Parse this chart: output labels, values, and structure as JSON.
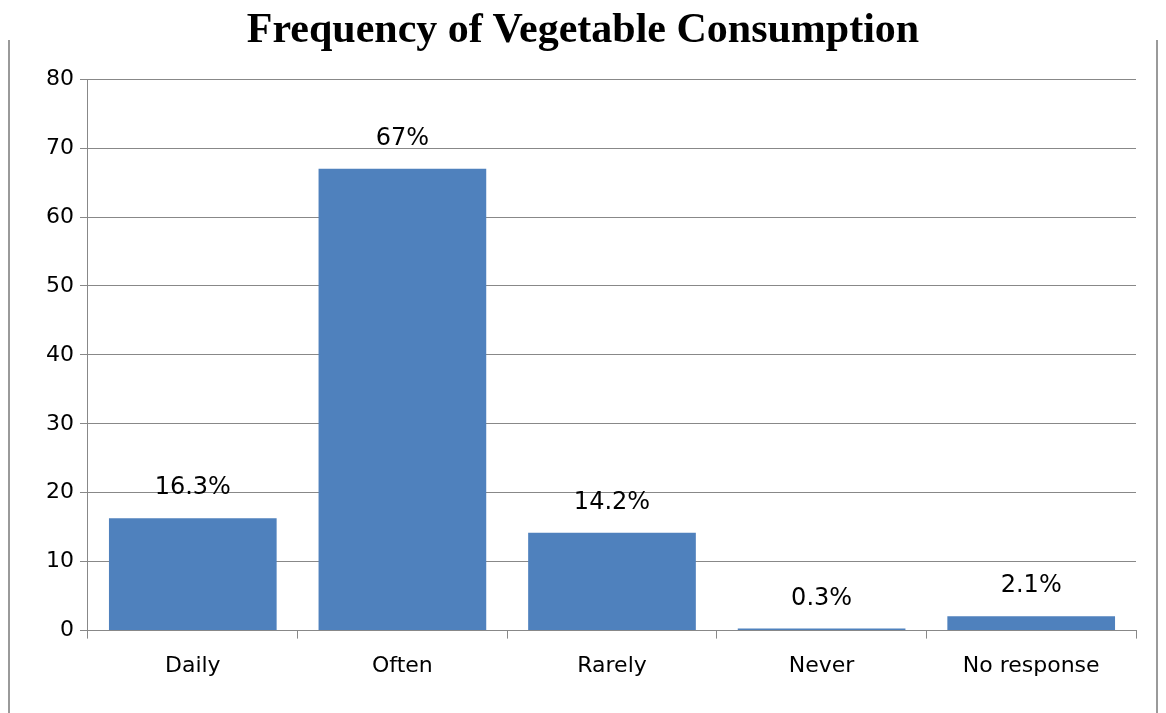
{
  "chart_data": {
    "type": "bar",
    "title": "Frequency of Vegetable Consumption",
    "categories": [
      "Daily",
      "Often",
      "Rarely",
      "Never",
      "No response"
    ],
    "values": [
      16.3,
      67,
      14.2,
      0.3,
      2.1
    ],
    "value_labels": [
      "16.3%",
      "67%",
      "14.2%",
      "0.3%",
      "2.1%"
    ],
    "color": "#4f81bd",
    "ylim": [
      0,
      80
    ],
    "yticks": [
      0,
      10,
      20,
      30,
      40,
      50,
      60,
      70,
      80
    ],
    "grid": "y"
  }
}
